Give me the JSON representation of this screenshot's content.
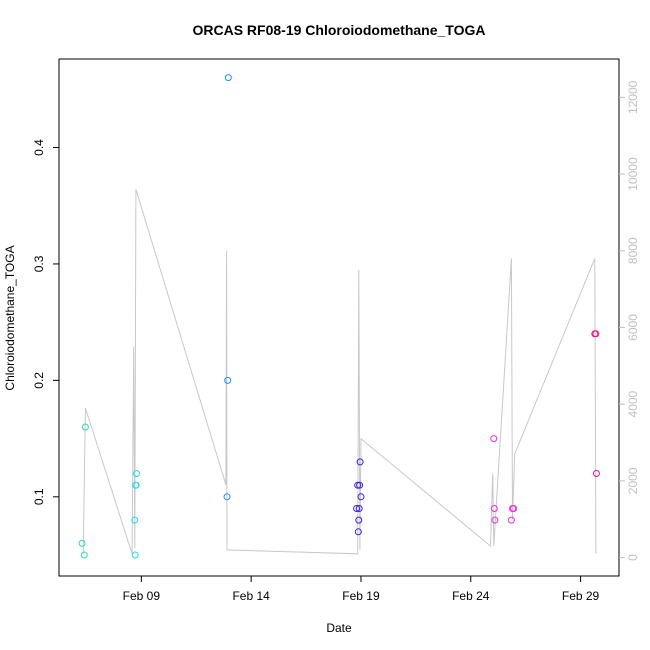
{
  "chart_data": {
    "type": "scatter",
    "title": "ORCAS RF08-19 Chloroiodomethane_TOGA",
    "xlabel": "Date",
    "ylabel": "Chloroiodomethane_TOGA",
    "x_ticks": [
      {
        "label": "Feb 09",
        "day": 9
      },
      {
        "label": "Feb 14",
        "day": 14
      },
      {
        "label": "Feb 19",
        "day": 19
      },
      {
        "label": "Feb 24",
        "day": 24
      },
      {
        "label": "Feb 29",
        "day": 29
      }
    ],
    "xlim_days": [
      5.25,
      30.75
    ],
    "ylim": [
      0.032,
      0.476
    ],
    "y_ticks": [
      0.1,
      0.2,
      0.3,
      0.4
    ],
    "y2lim": [
      -480,
      13000
    ],
    "y2_ticks": [
      0,
      2000,
      4000,
      6000,
      8000,
      10000,
      12000
    ],
    "line_color": "#c8c8c8",
    "series": [
      {
        "color": "#2bd9b3",
        "points": [
          {
            "day": 6.3,
            "y": 0.06
          },
          {
            "day": 6.4,
            "y": 0.05
          },
          {
            "day": 6.45,
            "y": 0.16
          }
        ]
      },
      {
        "color": "#19e0e8",
        "points": [
          {
            "day": 8.7,
            "y": 0.08
          },
          {
            "day": 8.72,
            "y": 0.05
          },
          {
            "day": 8.74,
            "y": 0.11
          },
          {
            "day": 8.76,
            "y": 0.11
          },
          {
            "day": 8.78,
            "y": 0.12
          }
        ]
      },
      {
        "color": "#1e90ff",
        "points": [
          {
            "day": 12.9,
            "y": 0.1
          },
          {
            "day": 12.93,
            "y": 0.2
          },
          {
            "day": 12.96,
            "y": 0.46
          }
        ]
      },
      {
        "color": "#3b1fe0",
        "points": [
          {
            "day": 18.8,
            "y": 0.09
          },
          {
            "day": 18.85,
            "y": 0.11
          },
          {
            "day": 18.88,
            "y": 0.07
          },
          {
            "day": 18.9,
            "y": 0.08
          },
          {
            "day": 18.92,
            "y": 0.09
          },
          {
            "day": 18.94,
            "y": 0.11
          },
          {
            "day": 18.96,
            "y": 0.13
          },
          {
            "day": 19.0,
            "y": 0.1
          }
        ]
      },
      {
        "color": "#ee2be0",
        "points": [
          {
            "day": 25.05,
            "y": 0.15
          },
          {
            "day": 25.07,
            "y": 0.09
          },
          {
            "day": 25.1,
            "y": 0.08
          },
          {
            "day": 25.85,
            "y": 0.08
          },
          {
            "day": 25.9,
            "y": 0.09
          },
          {
            "day": 25.95,
            "y": 0.09
          }
        ]
      },
      {
        "color": "#e8157a",
        "points": [
          {
            "day": 29.65,
            "y": 0.24
          },
          {
            "day": 29.7,
            "y": 0.24
          },
          {
            "day": 29.72,
            "y": 0.12
          }
        ]
      }
    ],
    "altitude_line": [
      {
        "day": 6.35,
        "y2": 80
      },
      {
        "day": 6.45,
        "y2": 3900
      },
      {
        "day": 8.58,
        "y2": 100
      },
      {
        "day": 8.65,
        "y2": 5500
      },
      {
        "day": 8.7,
        "y2": 250
      },
      {
        "day": 8.75,
        "y2": 9600
      },
      {
        "day": 12.85,
        "y2": 1900
      },
      {
        "day": 12.88,
        "y2": 8000
      },
      {
        "day": 12.9,
        "y2": 200
      },
      {
        "day": 18.85,
        "y2": 100
      },
      {
        "day": 18.9,
        "y2": 7500
      },
      {
        "day": 18.95,
        "y2": 200
      },
      {
        "day": 19.0,
        "y2": 3100
      },
      {
        "day": 24.9,
        "y2": 300
      },
      {
        "day": 25.0,
        "y2": 2200
      },
      {
        "day": 25.05,
        "y2": 300
      },
      {
        "day": 25.85,
        "y2": 7800
      },
      {
        "day": 25.9,
        "y2": 1000
      },
      {
        "day": 26.0,
        "y2": 2700
      },
      {
        "day": 29.65,
        "y2": 7800
      },
      {
        "day": 29.7,
        "y2": 100
      }
    ]
  }
}
